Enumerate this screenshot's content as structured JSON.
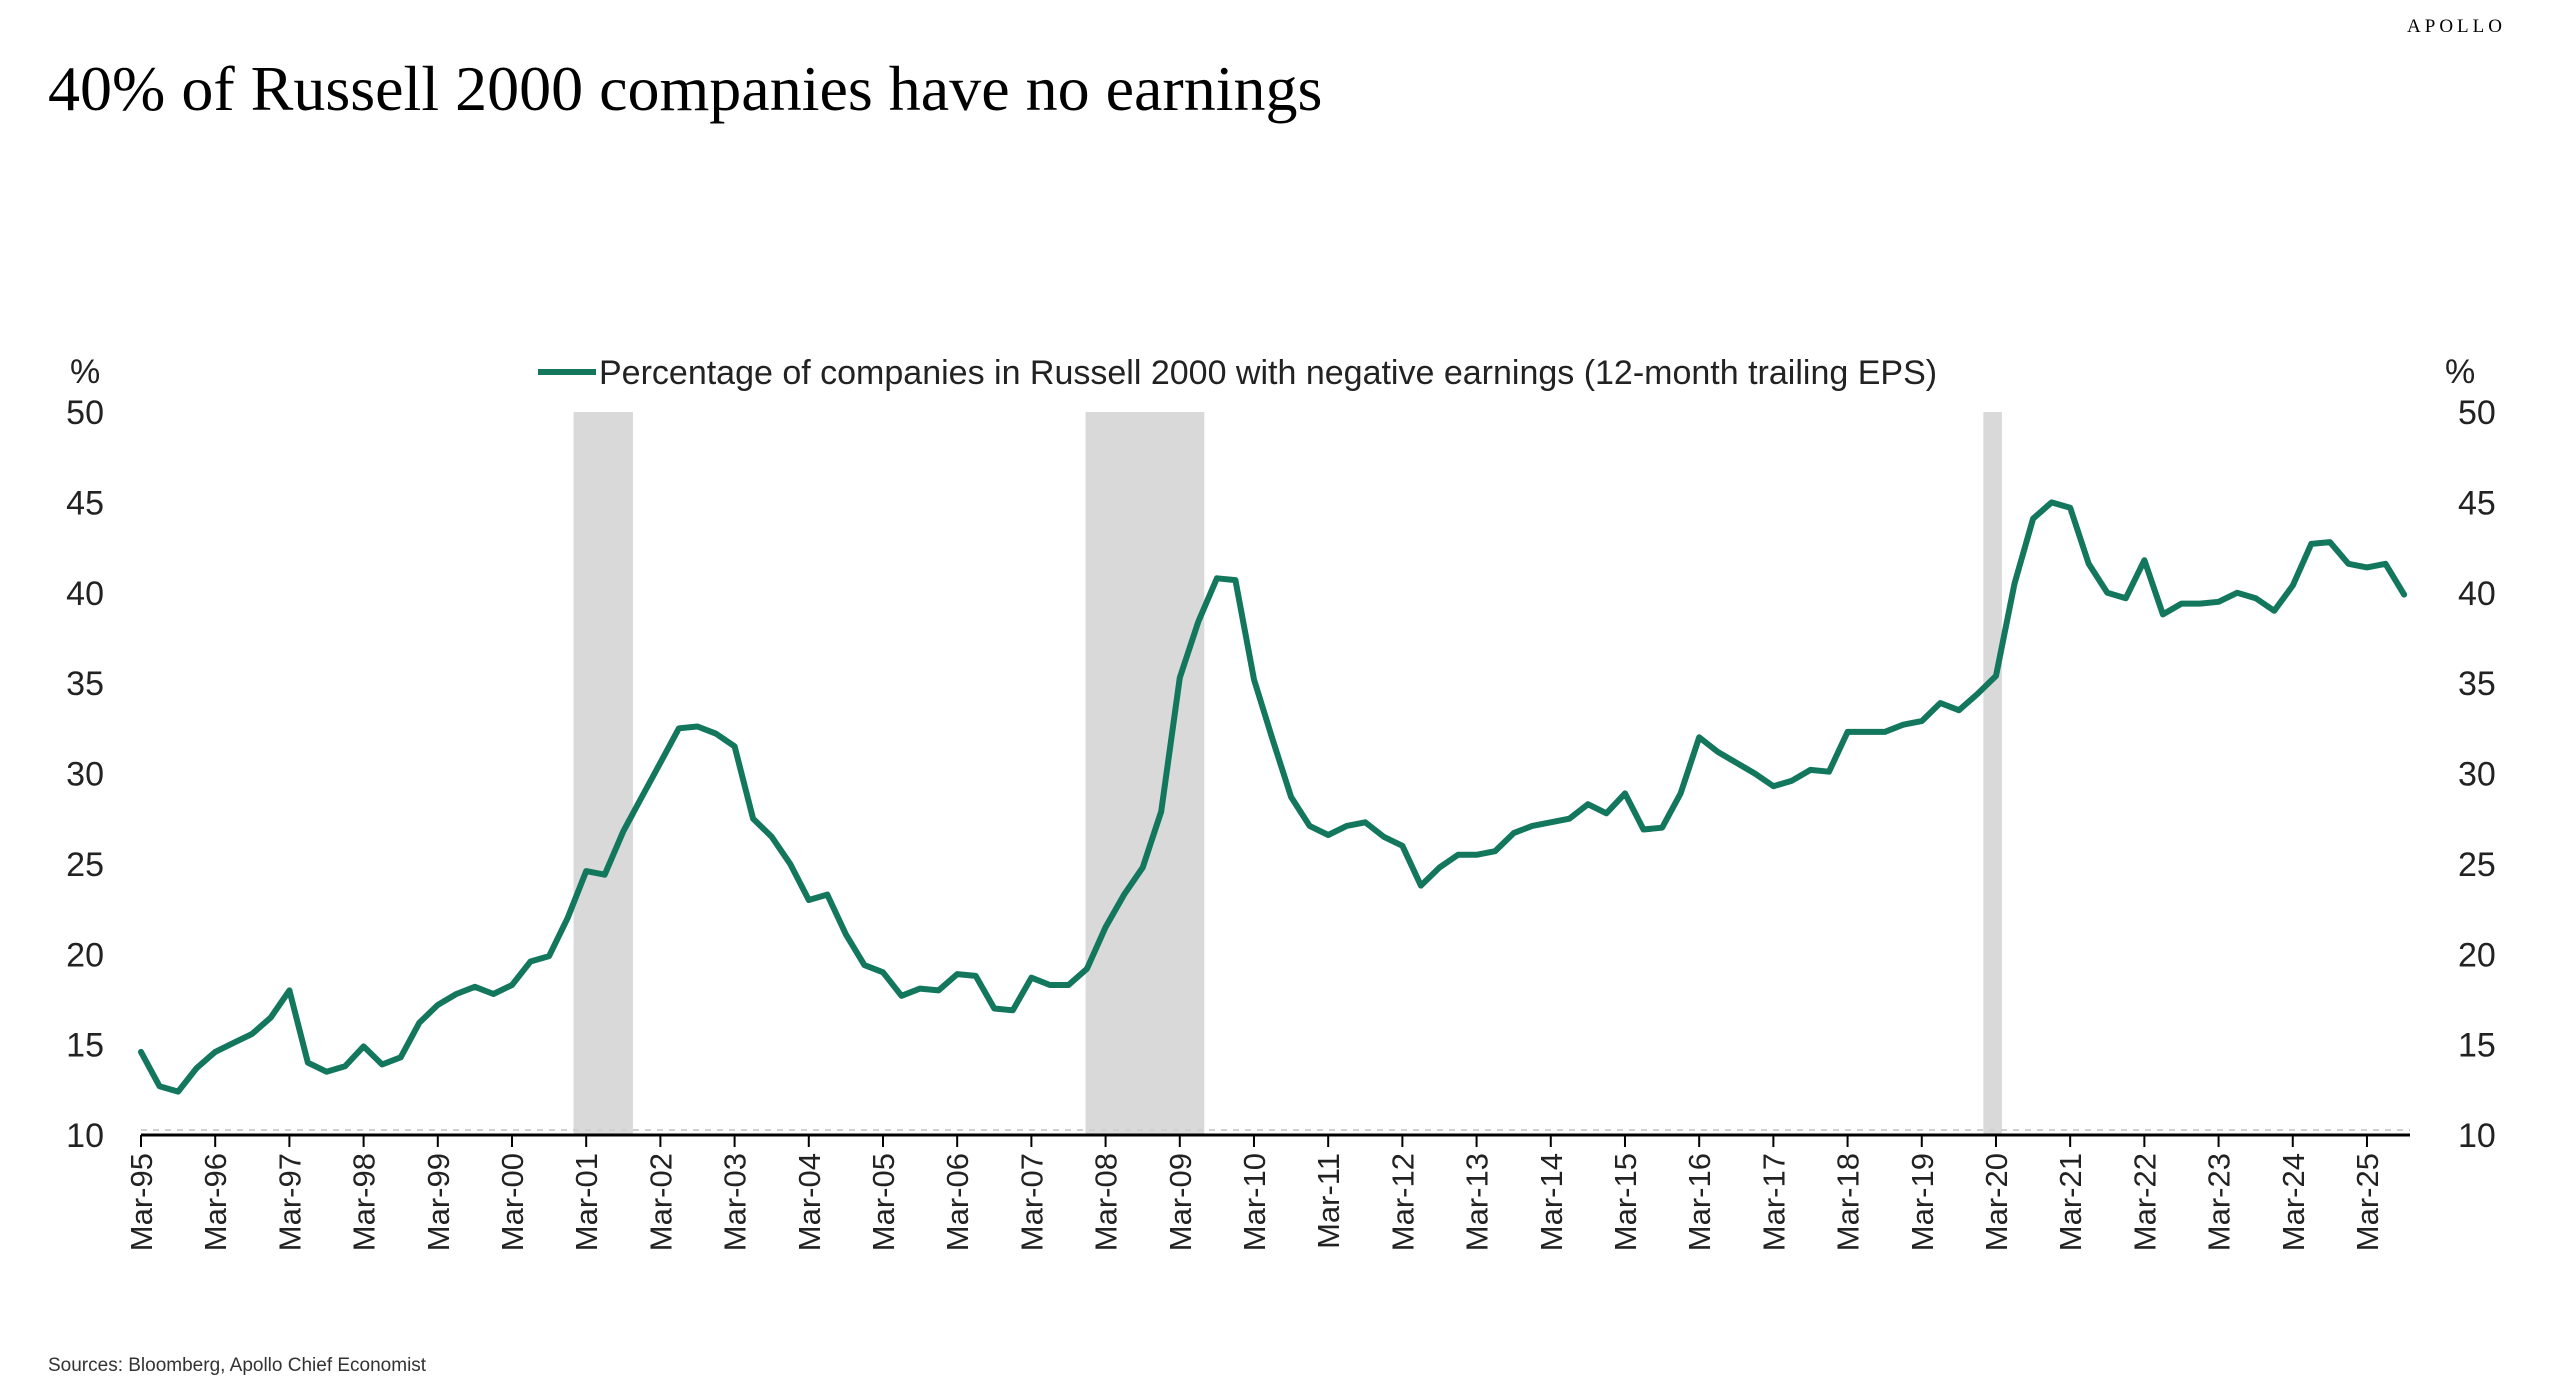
{
  "brand": "APOLLO",
  "title": "40% of Russell 2000 companies have no earnings",
  "source": "Sources: Bloomberg, Apollo Chief Economist",
  "colors": {
    "line": "#12775d",
    "recession": "#d9d9d9",
    "axis": "#000000"
  },
  "chart_data": {
    "type": "line",
    "title": "40% of Russell 2000 companies have no earnings",
    "y_unit_left": "%",
    "y_unit_right": "%",
    "ylim": [
      10,
      50
    ],
    "yticks": [
      10,
      15,
      20,
      25,
      30,
      35,
      40,
      45,
      50
    ],
    "xlim": [
      1995.17,
      2025.75
    ],
    "xticks": [
      "Mar-95",
      "Mar-96",
      "Mar-97",
      "Mar-98",
      "Mar-99",
      "Mar-00",
      "Mar-01",
      "Mar-02",
      "Mar-03",
      "Mar-04",
      "Mar-05",
      "Mar-06",
      "Mar-07",
      "Mar-08",
      "Mar-09",
      "Mar-10",
      "Mar-11",
      "Mar-12",
      "Mar-13",
      "Mar-14",
      "Mar-15",
      "Mar-16",
      "Mar-17",
      "Mar-18",
      "Mar-19",
      "Mar-20",
      "Mar-21",
      "Mar-22",
      "Mar-23",
      "Mar-24",
      "Mar-25"
    ],
    "recessions": [
      [
        2001.0,
        2001.8
      ],
      [
        2007.9,
        2009.5
      ],
      [
        2020.0,
        2020.25
      ]
    ],
    "legend": "Percentage of companies in Russell 2000 with negative earnings (12-month trailing EPS)",
    "series": [
      {
        "name": "Percentage of companies in Russell 2000 with negative earnings (12-month trailing EPS)",
        "x": [
          1995.17,
          1995.42,
          1995.67,
          1995.92,
          1996.17,
          1996.42,
          1996.67,
          1996.92,
          1997.17,
          1997.42,
          1997.67,
          1997.92,
          1998.17,
          1998.42,
          1998.67,
          1998.92,
          1999.17,
          1999.42,
          1999.67,
          1999.92,
          2000.17,
          2000.42,
          2000.67,
          2000.92,
          2001.17,
          2001.42,
          2001.67,
          2001.92,
          2002.17,
          2002.42,
          2002.67,
          2002.92,
          2003.17,
          2003.42,
          2003.67,
          2003.92,
          2004.17,
          2004.42,
          2004.67,
          2004.92,
          2005.17,
          2005.42,
          2005.67,
          2005.92,
          2006.17,
          2006.42,
          2006.67,
          2006.92,
          2007.17,
          2007.42,
          2007.67,
          2007.92,
          2008.17,
          2008.42,
          2008.67,
          2008.92,
          2009.17,
          2009.42,
          2009.67,
          2009.92,
          2010.17,
          2010.42,
          2010.67,
          2010.92,
          2011.17,
          2011.42,
          2011.67,
          2011.92,
          2012.17,
          2012.42,
          2012.67,
          2012.92,
          2013.17,
          2013.42,
          2013.67,
          2013.92,
          2014.17,
          2014.42,
          2014.67,
          2014.92,
          2015.17,
          2015.42,
          2015.67,
          2015.92,
          2016.17,
          2016.42,
          2016.67,
          2016.92,
          2017.17,
          2017.42,
          2017.67,
          2017.92,
          2018.17,
          2018.42,
          2018.67,
          2018.92,
          2019.17,
          2019.42,
          2019.67,
          2019.92,
          2020.17,
          2020.42,
          2020.67,
          2020.92,
          2021.17,
          2021.42,
          2021.67,
          2021.92,
          2022.17,
          2022.42,
          2022.67,
          2022.92,
          2023.17,
          2023.42,
          2023.67,
          2023.92,
          2024.17,
          2024.42,
          2024.67,
          2024.92,
          2025.17,
          2025.42,
          2025.67
        ],
        "values": [
          14.6,
          12.7,
          12.4,
          13.7,
          14.6,
          15.1,
          15.6,
          16.5,
          18.0,
          14.0,
          13.5,
          13.8,
          14.9,
          13.9,
          14.3,
          16.2,
          17.2,
          17.8,
          18.2,
          17.8,
          18.3,
          19.6,
          19.9,
          22.0,
          24.6,
          24.4,
          26.8,
          28.7,
          30.6,
          32.5,
          32.6,
          32.2,
          31.5,
          27.5,
          26.5,
          25.0,
          23.0,
          23.3,
          21.1,
          19.4,
          19.0,
          17.7,
          18.1,
          18.0,
          18.9,
          18.8,
          17.0,
          16.9,
          18.7,
          18.3,
          18.3,
          19.2,
          21.5,
          23.3,
          24.8,
          27.9,
          35.3,
          38.4,
          40.8,
          40.7,
          35.2,
          31.9,
          28.7,
          27.1,
          26.6,
          27.1,
          27.3,
          26.5,
          26.0,
          23.8,
          24.8,
          25.5,
          25.5,
          25.7,
          26.7,
          27.1,
          27.3,
          27.5,
          28.3,
          27.8,
          28.9,
          26.9,
          27.0,
          28.9,
          32.0,
          31.2,
          30.6,
          30.0,
          29.3,
          29.6,
          30.2,
          30.1,
          32.3,
          32.3,
          32.3,
          32.7,
          32.9,
          33.9,
          33.5,
          34.4,
          35.4,
          40.5,
          44.1,
          45.0,
          44.7,
          41.6,
          40.0,
          39.7,
          41.8,
          38.8,
          39.4,
          39.4,
          39.5,
          40.0,
          39.7,
          39.0,
          40.4,
          42.7,
          42.8,
          41.6,
          41.4,
          41.6,
          39.9
        ]
      }
    ]
  }
}
